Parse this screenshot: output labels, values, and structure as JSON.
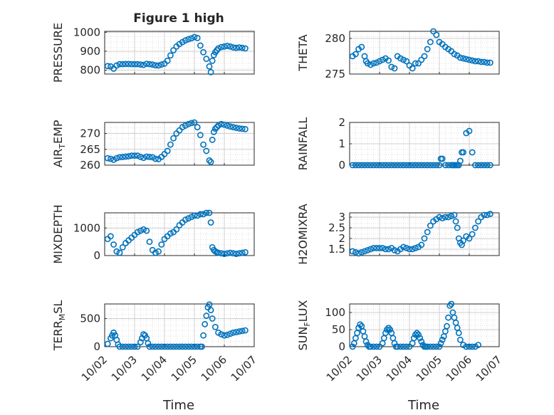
{
  "figure": {
    "title": "Figure 1 high",
    "x_axis_label": "Time",
    "marker_color": "#0072BD"
  },
  "chart_data": [
    {
      "type": "scatter",
      "ylabel": "PRESSURE",
      "xlim": [
        0,
        5
      ],
      "ylim": [
        780,
        1005
      ],
      "yticks": [
        800,
        900,
        1000
      ],
      "ytick_labels": [
        "800",
        "900",
        "1000"
      ],
      "xticks": [
        0,
        1,
        2,
        3,
        4,
        5
      ],
      "xtick_labels": [],
      "grid": true,
      "x": [
        0.1,
        0.2,
        0.3,
        0.4,
        0.5,
        0.6,
        0.7,
        0.8,
        0.9,
        1.0,
        1.1,
        1.2,
        1.3,
        1.4,
        1.5,
        1.6,
        1.7,
        1.8,
        1.9,
        2.0,
        2.1,
        2.2,
        2.3,
        2.4,
        2.5,
        2.6,
        2.7,
        2.8,
        2.9,
        3.0,
        3.1,
        3.2,
        3.3,
        3.4,
        3.5,
        3.55,
        3.6,
        3.65,
        3.7,
        3.75,
        3.8,
        3.9,
        4.0,
        4.1,
        4.2,
        4.3,
        4.4,
        4.5,
        4.6,
        4.7
      ],
      "y": [
        822,
        820,
        808,
        825,
        832,
        832,
        833,
        833,
        832,
        832,
        832,
        830,
        828,
        834,
        832,
        830,
        826,
        825,
        830,
        835,
        850,
        878,
        905,
        925,
        938,
        948,
        957,
        963,
        968,
        975,
        970,
        930,
        895,
        860,
        820,
        790,
        850,
        880,
        895,
        905,
        915,
        922,
        925,
        928,
        925,
        920,
        918,
        920,
        918,
        915
      ],
      "series_name": ""
    },
    {
      "type": "scatter",
      "ylabel": "THETA",
      "xlim": [
        0,
        5
      ],
      "ylim": [
        275,
        281
      ],
      "yticks": [
        275,
        280
      ],
      "ytick_labels": [
        "275",
        "280"
      ],
      "xticks": [
        0,
        1,
        2,
        3,
        4,
        5
      ],
      "xtick_labels": [],
      "grid": true,
      "x": [
        0.1,
        0.2,
        0.3,
        0.4,
        0.5,
        0.55,
        0.6,
        0.7,
        0.8,
        0.9,
        1.0,
        1.1,
        1.2,
        1.3,
        1.4,
        1.5,
        1.6,
        1.7,
        1.8,
        1.9,
        2.0,
        2.1,
        2.2,
        2.3,
        2.4,
        2.5,
        2.6,
        2.7,
        2.8,
        2.9,
        3.0,
        3.1,
        3.2,
        3.3,
        3.4,
        3.5,
        3.6,
        3.7,
        3.8,
        3.9,
        4.0,
        4.1,
        4.2,
        4.3,
        4.4,
        4.5,
        4.6,
        4.7
      ],
      "y": [
        277.5,
        277.8,
        278.5,
        278.8,
        277.5,
        276.8,
        276.5,
        276.3,
        276.5,
        276.6,
        276.8,
        277.0,
        277.2,
        276.9,
        276.0,
        275.8,
        277.5,
        277.2,
        277.0,
        276.8,
        276.2,
        275.8,
        276.5,
        276.5,
        277.0,
        277.5,
        278.5,
        279.5,
        281.0,
        280.5,
        279.5,
        279.2,
        278.8,
        278.5,
        278.2,
        277.8,
        277.6,
        277.3,
        277.2,
        277.1,
        277.0,
        276.9,
        276.8,
        276.8,
        276.7,
        276.7,
        276.6,
        276.6
      ],
      "series_name": ""
    },
    {
      "type": "scatter",
      "ylabel": "AIR_TEMP",
      "xlim": [
        0,
        5
      ],
      "ylim": [
        260,
        273.5
      ],
      "yticks": [
        260,
        265,
        270
      ],
      "ytick_labels": [
        "260",
        "265",
        "270"
      ],
      "xticks": [
        0,
        1,
        2,
        3,
        4,
        5
      ],
      "xtick_labels": [],
      "grid": true,
      "x": [
        0.1,
        0.2,
        0.3,
        0.4,
        0.5,
        0.6,
        0.7,
        0.8,
        0.9,
        1.0,
        1.1,
        1.2,
        1.3,
        1.4,
        1.5,
        1.6,
        1.7,
        1.8,
        1.9,
        2.0,
        2.1,
        2.2,
        2.3,
        2.4,
        2.5,
        2.6,
        2.7,
        2.8,
        2.9,
        3.0,
        3.1,
        3.2,
        3.3,
        3.4,
        3.5,
        3.55,
        3.6,
        3.65,
        3.7,
        3.75,
        3.8,
        3.9,
        4.0,
        4.1,
        4.2,
        4.3,
        4.4,
        4.5,
        4.6,
        4.7
      ],
      "y": [
        262.2,
        262.0,
        261.7,
        262.2,
        262.5,
        262.6,
        262.7,
        262.8,
        263.0,
        263.0,
        263.0,
        262.6,
        262.3,
        262.7,
        262.6,
        262.5,
        262.0,
        261.9,
        262.6,
        263.5,
        264.5,
        266.5,
        268.5,
        270.0,
        271.0,
        272.0,
        272.5,
        273.0,
        273.3,
        273.5,
        272.0,
        269.5,
        266.5,
        264.5,
        261.5,
        261.0,
        268.0,
        270.5,
        271.5,
        272.0,
        272.5,
        273.0,
        272.8,
        272.5,
        272.2,
        272.0,
        271.8,
        271.6,
        271.5,
        271.4
      ],
      "series_name": ""
    },
    {
      "type": "scatter",
      "ylabel": "RAINFALL",
      "xlim": [
        0,
        5
      ],
      "ylim": [
        0,
        2
      ],
      "yticks": [
        0,
        1,
        2
      ],
      "ytick_labels": [
        "0",
        "1",
        "2"
      ],
      "xticks": [
        0,
        1,
        2,
        3,
        4,
        5
      ],
      "xtick_labels": [],
      "grid": true,
      "x": [
        0.1,
        0.2,
        0.3,
        0.4,
        0.5,
        0.6,
        0.7,
        0.8,
        0.9,
        1.0,
        1.1,
        1.2,
        1.3,
        1.4,
        1.5,
        1.6,
        1.7,
        1.8,
        1.9,
        2.0,
        2.1,
        2.2,
        2.3,
        2.4,
        2.5,
        2.6,
        2.7,
        2.8,
        2.9,
        3.0,
        3.05,
        3.1,
        3.2,
        3.3,
        3.4,
        3.45,
        3.5,
        3.55,
        3.6,
        3.65,
        3.7,
        3.75,
        3.8,
        3.9,
        4.0,
        4.1,
        4.2,
        4.3,
        4.4,
        4.5,
        4.6,
        4.7
      ],
      "y": [
        0,
        0,
        0,
        0,
        0,
        0,
        0,
        0,
        0,
        0,
        0,
        0,
        0,
        0,
        0,
        0,
        0,
        0,
        0,
        0,
        0,
        0,
        0,
        0,
        0,
        0,
        0,
        0,
        0,
        0,
        0.3,
        0.3,
        0,
        0,
        0,
        0,
        0,
        0,
        0,
        0,
        0.2,
        0.6,
        0.6,
        1.5,
        1.6,
        0.6,
        0,
        0,
        0,
        0,
        0,
        0
      ],
      "series_name": ""
    },
    {
      "type": "scatter",
      "ylabel": "MIXDEPTH",
      "xlim": [
        0,
        5
      ],
      "ylim": [
        0,
        1550
      ],
      "yticks": [
        0,
        1000
      ],
      "ytick_labels": [
        "0",
        "1000"
      ],
      "xticks": [
        0,
        1,
        2,
        3,
        4,
        5
      ],
      "xtick_labels": [],
      "grid": true,
      "x": [
        0.1,
        0.2,
        0.3,
        0.4,
        0.5,
        0.6,
        0.7,
        0.8,
        0.9,
        1.0,
        1.1,
        1.2,
        1.3,
        1.4,
        1.5,
        1.6,
        1.7,
        1.8,
        1.9,
        2.0,
        2.1,
        2.2,
        2.3,
        2.4,
        2.5,
        2.6,
        2.7,
        2.8,
        2.9,
        3.0,
        3.1,
        3.2,
        3.3,
        3.4,
        3.5,
        3.55,
        3.6,
        3.65,
        3.7,
        3.75,
        3.8,
        3.9,
        4.0,
        4.1,
        4.2,
        4.3,
        4.4,
        4.5,
        4.6,
        4.7
      ],
      "y": [
        600,
        700,
        400,
        150,
        100,
        300,
        450,
        550,
        650,
        750,
        850,
        900,
        950,
        900,
        500,
        200,
        100,
        150,
        400,
        600,
        700,
        800,
        850,
        950,
        1100,
        1200,
        1300,
        1350,
        1400,
        1450,
        1450,
        1500,
        1500,
        1550,
        1550,
        1200,
        300,
        200,
        150,
        120,
        100,
        80,
        60,
        80,
        100,
        80,
        60,
        80,
        100,
        120
      ],
      "series_name": ""
    },
    {
      "type": "scatter",
      "ylabel": "H2OMIXRA",
      "xlim": [
        0,
        5
      ],
      "ylim": [
        1.2,
        3.2
      ],
      "yticks": [
        1.5,
        2,
        2.5,
        3
      ],
      "ytick_labels": [
        "1.5",
        "2",
        "2.5",
        "3"
      ],
      "xticks": [
        0,
        1,
        2,
        3,
        4,
        5
      ],
      "xtick_labels": [],
      "grid": true,
      "x": [
        0.1,
        0.2,
        0.3,
        0.4,
        0.5,
        0.6,
        0.7,
        0.8,
        0.9,
        1.0,
        1.1,
        1.2,
        1.3,
        1.4,
        1.5,
        1.6,
        1.7,
        1.8,
        1.9,
        2.0,
        2.1,
        2.2,
        2.3,
        2.4,
        2.5,
        2.6,
        2.7,
        2.8,
        2.9,
        3.0,
        3.1,
        3.2,
        3.3,
        3.4,
        3.5,
        3.55,
        3.6,
        3.65,
        3.7,
        3.75,
        3.8,
        3.9,
        4.0,
        4.1,
        4.2,
        4.3,
        4.4,
        4.5,
        4.6,
        4.7
      ],
      "y": [
        1.4,
        1.35,
        1.3,
        1.35,
        1.4,
        1.45,
        1.5,
        1.55,
        1.55,
        1.55,
        1.55,
        1.5,
        1.5,
        1.55,
        1.45,
        1.4,
        1.5,
        1.6,
        1.55,
        1.5,
        1.5,
        1.55,
        1.6,
        1.7,
        2.0,
        2.3,
        2.6,
        2.8,
        2.9,
        3.0,
        2.95,
        3.0,
        3.0,
        3.05,
        3.1,
        2.8,
        2.5,
        2.0,
        1.8,
        1.7,
        1.9,
        2.1,
        2.0,
        2.2,
        2.5,
        2.8,
        3.0,
        3.1,
        3.1,
        3.15
      ],
      "series_name": ""
    },
    {
      "type": "scatter",
      "ylabel": "TERR_MSL",
      "xlim": [
        0,
        5
      ],
      "ylim": [
        0,
        760
      ],
      "yticks": [
        0,
        500
      ],
      "ytick_labels": [
        "0",
        "500"
      ],
      "xticks": [
        0,
        1,
        2,
        3,
        4,
        5
      ],
      "xtick_labels": [
        "10/02",
        "10/03",
        "10/04",
        "10/05",
        "10/06",
        "10/07"
      ],
      "grid": true,
      "x": [
        0.1,
        0.2,
        0.25,
        0.3,
        0.35,
        0.4,
        0.45,
        0.5,
        0.6,
        0.7,
        0.8,
        0.9,
        1.0,
        1.1,
        1.2,
        1.25,
        1.3,
        1.35,
        1.4,
        1.45,
        1.5,
        1.6,
        1.7,
        1.8,
        1.9,
        2.0,
        2.1,
        2.2,
        2.3,
        2.4,
        2.5,
        2.6,
        2.7,
        2.8,
        2.9,
        3.0,
        3.1,
        3.2,
        3.25,
        3.3,
        3.35,
        3.4,
        3.45,
        3.5,
        3.55,
        3.6,
        3.7,
        3.8,
        3.9,
        4.0,
        4.1,
        4.2,
        4.3,
        4.4,
        4.5,
        4.6,
        4.7
      ],
      "y": [
        50,
        150,
        200,
        250,
        200,
        120,
        40,
        0,
        0,
        0,
        0,
        0,
        0,
        0,
        80,
        150,
        220,
        200,
        150,
        60,
        0,
        0,
        0,
        0,
        0,
        0,
        0,
        0,
        0,
        0,
        0,
        0,
        0,
        0,
        0,
        0,
        0,
        0,
        0,
        200,
        400,
        550,
        700,
        750,
        650,
        500,
        350,
        250,
        220,
        200,
        210,
        230,
        250,
        260,
        270,
        280,
        290
      ],
      "series_name": ""
    },
    {
      "type": "scatter",
      "ylabel": "SUN_FLUX",
      "xlim": [
        0,
        5
      ],
      "ylim": [
        0,
        125
      ],
      "yticks": [
        0,
        50,
        100
      ],
      "ytick_labels": [
        "0",
        "50",
        "100"
      ],
      "xticks": [
        0,
        1,
        2,
        3,
        4,
        5
      ],
      "xtick_labels": [
        "10/02",
        "10/03",
        "10/04",
        "10/05",
        "10/06",
        "10/07"
      ],
      "grid": true,
      "x": [
        0.1,
        0.15,
        0.2,
        0.25,
        0.3,
        0.35,
        0.4,
        0.45,
        0.5,
        0.55,
        0.6,
        0.65,
        0.7,
        0.8,
        0.9,
        1.0,
        1.1,
        1.15,
        1.2,
        1.25,
        1.3,
        1.35,
        1.4,
        1.45,
        1.5,
        1.55,
        1.6,
        1.7,
        1.8,
        1.9,
        2.0,
        2.1,
        2.15,
        2.2,
        2.25,
        2.3,
        2.35,
        2.4,
        2.45,
        2.5,
        2.55,
        2.6,
        2.7,
        2.8,
        2.9,
        3.0,
        3.05,
        3.1,
        3.15,
        3.2,
        3.25,
        3.3,
        3.35,
        3.4,
        3.45,
        3.5,
        3.55,
        3.6,
        3.65,
        3.7,
        3.8,
        3.9,
        4.0,
        4.1,
        4.2,
        4.3
      ],
      "y": [
        0,
        10,
        25,
        40,
        55,
        65,
        60,
        45,
        30,
        15,
        5,
        0,
        0,
        0,
        0,
        0,
        10,
        25,
        40,
        50,
        55,
        50,
        40,
        25,
        10,
        0,
        0,
        0,
        0,
        0,
        0,
        10,
        25,
        35,
        40,
        35,
        25,
        15,
        5,
        0,
        0,
        0,
        0,
        0,
        0,
        0,
        10,
        20,
        30,
        45,
        60,
        85,
        120,
        125,
        100,
        85,
        70,
        55,
        40,
        20,
        5,
        0,
        0,
        0,
        0,
        5
      ],
      "series_name": ""
    }
  ]
}
